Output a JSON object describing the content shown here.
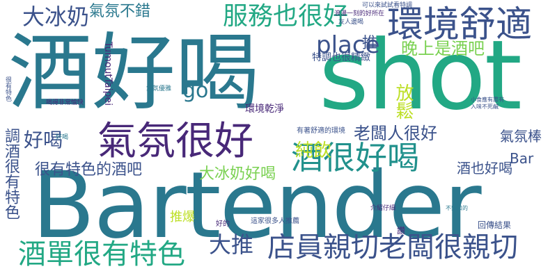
{
  "colors": {
    "teal": "#2a788e",
    "green": "#22a884",
    "purple": "#482878",
    "navy": "#3b528b",
    "lime": "#7ad151",
    "yellow": "#bddf26",
    "dark": "#440154",
    "cyan": "#21918c"
  },
  "words": [
    {
      "text": "Bartender"
    },
    {
      "text": "shot"
    },
    {
      "text": "酒好喝"
    },
    {
      "text": "環境舒適"
    },
    {
      "text": "氣氛很好"
    },
    {
      "text": "店員親切老闆很親切"
    },
    {
      "text": "酒很好喝"
    },
    {
      "text": "服務也很好"
    },
    {
      "text": "大冰奶"
    },
    {
      "text": "酒單很有特色"
    },
    {
      "text": "氣氛不錯"
    },
    {
      "text": "place"
    },
    {
      "text": "晚上是酒吧"
    },
    {
      "text": "很有特色的酒吧"
    },
    {
      "text": "調酒很有特色"
    },
    {
      "text": "好喝"
    },
    {
      "text": "老闆人很好"
    },
    {
      "text": "純飲"
    },
    {
      "text": "放鬆"
    },
    {
      "text": "氣氛棒"
    },
    {
      "text": "大冰奶好喝"
    },
    {
      "text": "酒也好喝"
    },
    {
      "text": "大推"
    },
    {
      "text": "go"
    },
    {
      "text": "推爆"
    },
    {
      "text": "Bar"
    },
    {
      "text": "TumoutTaipei"
    },
    {
      "text": "推"
    },
    {
      "text": "環境乾淨"
    },
    {
      "text": "特調也很精緻"
    },
    {
      "text": "回傳結果"
    },
    {
      "text": "讚"
    },
    {
      "text": "可以來試試看特調"
    },
    {
      "text": "浪漫一刻的好所在"
    },
    {
      "text": "有著舒適的環境"
    },
    {
      "text": "氣氛優雅"
    },
    {
      "text": "友人邊喝"
    },
    {
      "text": "好的"
    },
    {
      "text": "這家很多人推薦"
    },
    {
      "text": "不辣口的"
    },
    {
      "text": "介紹仔細"
    },
    {
      "text": "入味不死鹹"
    },
    {
      "text": "小食應有盡有"
    },
    {
      "text": "很有特色"
    },
    {
      "text": "喝得非常愉快"
    },
    {
      "text": "好喝"
    }
  ]
}
